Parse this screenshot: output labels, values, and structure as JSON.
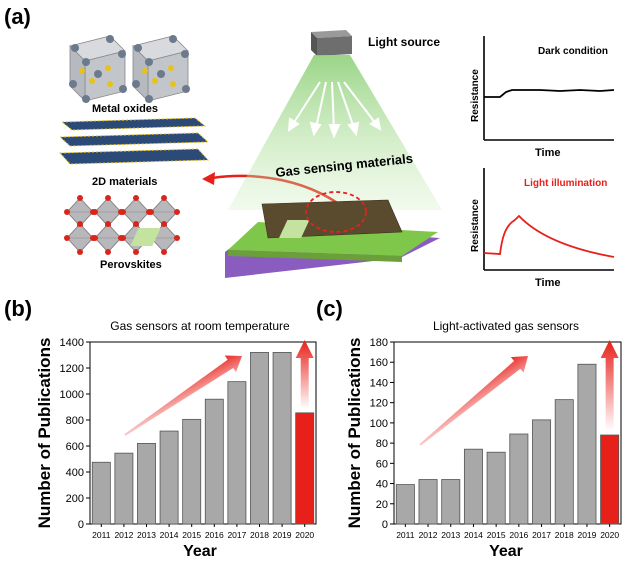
{
  "panel_a": {
    "label": "(a)",
    "materials": [
      {
        "label": "Metal oxides"
      },
      {
        "label": "2D materials"
      },
      {
        "label": "Perovskites"
      }
    ],
    "light_source_label": "Light source",
    "sensing_label": "Gas sensing materials",
    "dark_panel": {
      "condition": "Dark condition",
      "ylabel": "Resistance",
      "xlabel": "Time"
    },
    "light_panel": {
      "condition": "Light illumination",
      "ylabel": "Resistance",
      "xlabel": "Time"
    },
    "colors": {
      "red": "#e8201a",
      "green": "#7fc74a",
      "purple": "#8a5cc0",
      "chip_dark": "#5a4b2e"
    }
  },
  "chart_data": [
    {
      "type": "bar",
      "panel_label": "(b)",
      "title": "Gas sensors at room temperature",
      "xlabel": "Year",
      "ylabel": "Number of Publications",
      "categories": [
        "2011",
        "2012",
        "2013",
        "2014",
        "2015",
        "2016",
        "2017",
        "2018",
        "2019",
        "2020"
      ],
      "values": [
        475,
        545,
        620,
        715,
        805,
        960,
        1095,
        1320,
        1320,
        855
      ],
      "ylim": [
        0,
        1400
      ],
      "yticks": [
        0,
        200,
        400,
        600,
        800,
        1000,
        1200,
        1400
      ],
      "colors": {
        "bar": "#a8a8a8",
        "highlight": "#e8201a"
      },
      "highlight_index": 9,
      "grid": false
    },
    {
      "type": "bar",
      "panel_label": "(c)",
      "title": "Light-activated gas sensors",
      "xlabel": "Year",
      "ylabel": "Number of Publications",
      "categories": [
        "2011",
        "2012",
        "2013",
        "2014",
        "2015",
        "2016",
        "2017",
        "2018",
        "2019",
        "2020"
      ],
      "values": [
        39,
        44,
        44,
        74,
        71,
        89,
        103,
        123,
        158,
        88
      ],
      "ylim": [
        0,
        180
      ],
      "yticks": [
        0,
        20,
        40,
        60,
        80,
        100,
        120,
        140,
        160,
        180
      ],
      "colors": {
        "bar": "#a8a8a8",
        "highlight": "#e8201a"
      },
      "highlight_index": 9,
      "grid": false
    }
  ]
}
